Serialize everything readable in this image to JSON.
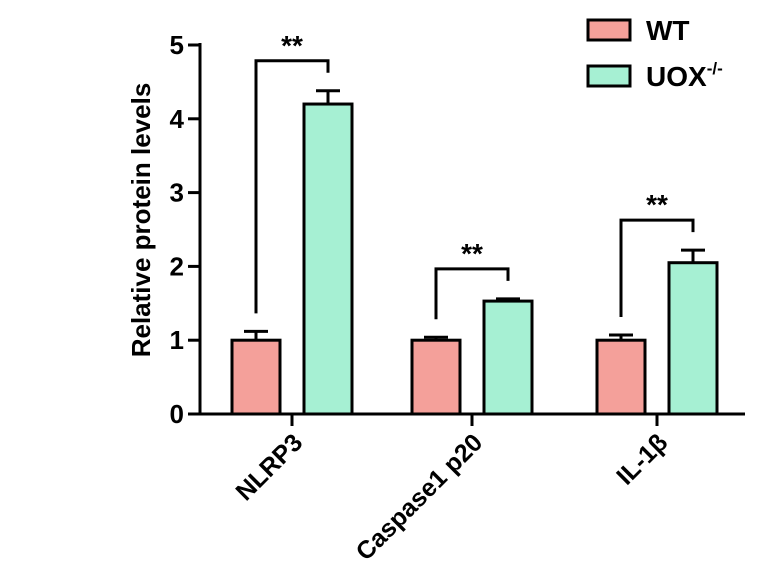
{
  "chart_data": {
    "type": "bar",
    "title": "",
    "xlabel": "",
    "ylabel": "Relative protein levels",
    "ylim": [
      0,
      5
    ],
    "yticks": [
      0,
      1,
      2,
      3,
      4,
      5
    ],
    "categories": [
      "NLRP3",
      "Caspase1 p20",
      "IL-1β"
    ],
    "series": [
      {
        "name": "WT",
        "color": "#f4a09a",
        "values": [
          1.0,
          1.0,
          1.0
        ],
        "errors": [
          0.12,
          0.04,
          0.07
        ]
      },
      {
        "name": "UOX",
        "name_sup": "-/-",
        "color": "#a6f0d3",
        "values": [
          4.2,
          1.53,
          2.05
        ],
        "errors": [
          0.18,
          0.03,
          0.17
        ]
      }
    ],
    "significance": [
      "**",
      "**",
      "**"
    ],
    "legend": "top-right",
    "grid": false
  }
}
